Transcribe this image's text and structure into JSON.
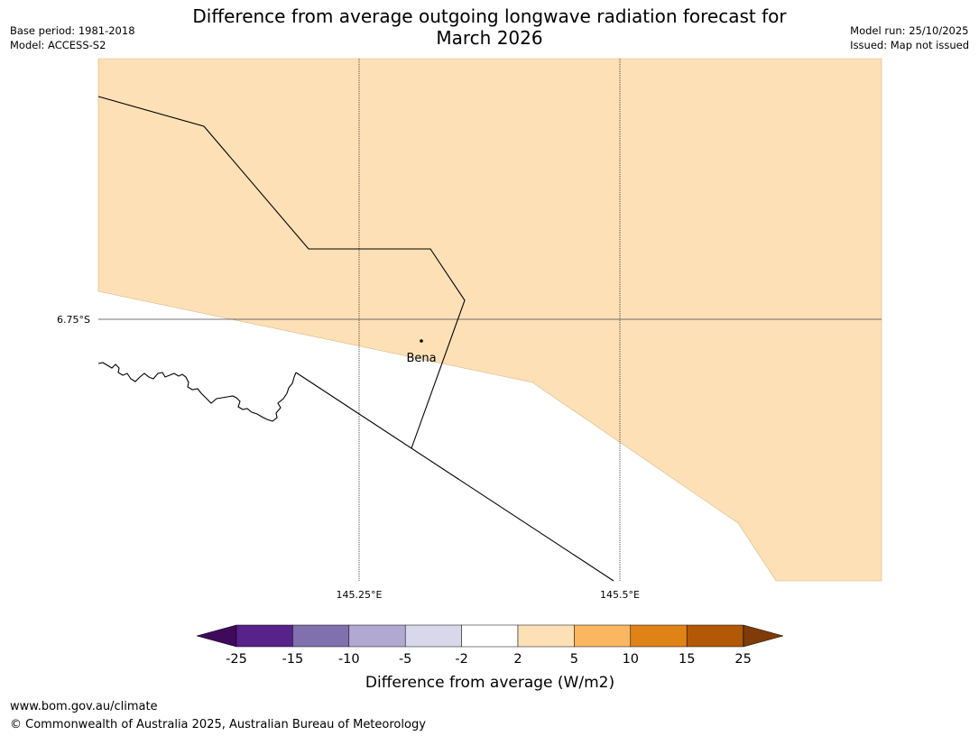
{
  "header": {
    "title_line1": "Difference from average outgoing longwave radiation forecast for",
    "title_line2": "March 2026",
    "base_period": "Base period: 1981-2018",
    "model": "Model: ACCESS-S2",
    "model_run": "Model run: 25/10/2025",
    "issued": "Issued: Map not issued"
  },
  "map": {
    "latitude_labels": [
      "6.75°S"
    ],
    "longitude_labels": [
      "145.25°E",
      "145.5°E"
    ],
    "places": [
      {
        "name": "Bena"
      }
    ],
    "anomaly_fill_color": "#fde0b6",
    "anomaly_category": "2 to 5"
  },
  "colorbar": {
    "title": "Difference from average (W/m2)",
    "tick_labels": [
      "-25",
      "-15",
      "-10",
      "-5",
      "-2",
      "2",
      "5",
      "10",
      "15",
      "25"
    ],
    "colors": [
      "#3f0a5c",
      "#58228b",
      "#8170ae",
      "#b2a9d3",
      "#d9d8ea",
      "#ffffff",
      "#fde0b6",
      "#fbb662",
      "#e08317",
      "#b35806",
      "#7f3b08"
    ]
  },
  "footer": {
    "url": "www.bom.gov.au/climate",
    "copyright": "© Commonwealth of Australia 2025, Australian Bureau of Meteorology"
  }
}
